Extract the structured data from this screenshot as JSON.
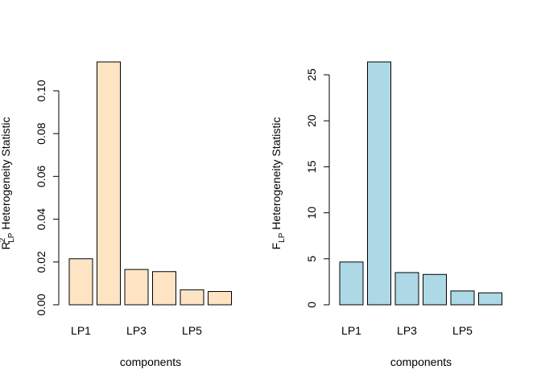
{
  "chart_data": [
    {
      "type": "bar",
      "categories": [
        "LP1",
        "LP2",
        "LP3",
        "LP4",
        "LP5",
        "LP6"
      ],
      "shown_category_labels": [
        "LP1",
        "LP3",
        "LP5"
      ],
      "values": [
        0.0215,
        0.1135,
        0.0165,
        0.0155,
        0.007,
        0.0062
      ],
      "ylim": [
        0,
        0.1135
      ],
      "yticks": [
        "0.00",
        "0.02",
        "0.04",
        "0.06",
        "0.08",
        "0.10"
      ],
      "ytick_values": [
        0,
        0.02,
        0.04,
        0.06,
        0.08,
        0.1
      ],
      "xlabel": "components",
      "ylabel_main": "R",
      "ylabel_sub": "LP",
      "ylabel_sup": "2",
      "ylabel_rest": " Heterogeneity Statistic",
      "bar_color": "#FFE4C4"
    },
    {
      "type": "bar",
      "categories": [
        "LP1",
        "LP2",
        "LP3",
        "LP4",
        "LP5",
        "LP6"
      ],
      "shown_category_labels": [
        "LP1",
        "LP3",
        "LP5"
      ],
      "values": [
        4.65,
        26.4,
        3.5,
        3.3,
        1.5,
        1.3
      ],
      "ylim": [
        0,
        26.4
      ],
      "yticks": [
        "0",
        "5",
        "10",
        "15",
        "20",
        "25"
      ],
      "ytick_values": [
        0,
        5,
        10,
        15,
        20,
        25
      ],
      "xlabel": "components",
      "ylabel_main": "F",
      "ylabel_sub": "LP",
      "ylabel_sup": "",
      "ylabel_rest": " Heterogeneity Statistic",
      "bar_color": "#ADD8E6"
    }
  ]
}
